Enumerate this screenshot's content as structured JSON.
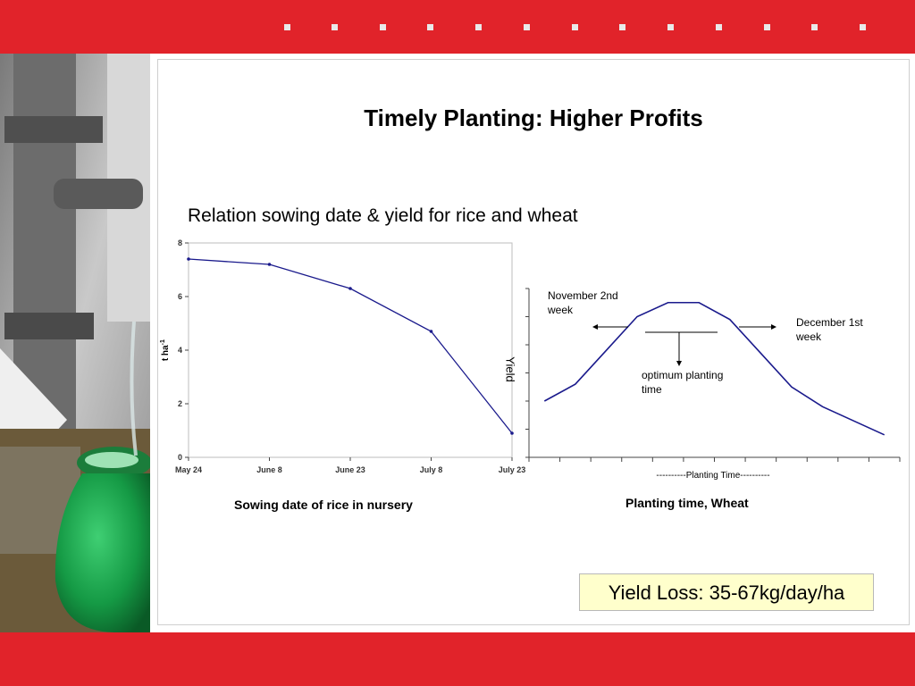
{
  "slide": {
    "title": "Timely Planting: Higher Profits",
    "subtitle": "Relation sowing date & yield for rice and wheat",
    "yield_loss": "Yield Loss: 35-67kg/day/ha"
  },
  "colors": {
    "accent_red": "#e1232a",
    "series_line": "#1a1a8c",
    "yield_box_bg": "#ffffcc"
  },
  "chart_data": [
    {
      "type": "line",
      "title": "Sowing date of rice in nursery",
      "xlabel": "",
      "ylabel": "t ha-1",
      "ylabel_base": "t ha",
      "ylabel_sup": "-1",
      "categories": [
        "May 24",
        "June 8",
        "June 23",
        "July 8",
        "July 23"
      ],
      "values": [
        7.4,
        7.2,
        6.3,
        4.7,
        0.9
      ],
      "ylim": [
        0,
        8
      ],
      "yticks": [
        "0",
        "2",
        "4",
        "6",
        "8"
      ],
      "grid": false
    },
    {
      "type": "line",
      "title": "Planting time, Wheat",
      "xlabel": "----------Planting Time----------",
      "ylabel": "Yield",
      "x": [
        1,
        2,
        3,
        4,
        5,
        6,
        7,
        8,
        9,
        10,
        11,
        12
      ],
      "values": [
        2.0,
        2.6,
        3.8,
        5.0,
        5.5,
        5.5,
        4.9,
        3.7,
        2.5,
        1.8,
        1.3,
        0.8
      ],
      "ylim": [
        0,
        6
      ],
      "annotations": {
        "left": "November 2nd week",
        "right": "December 1st week",
        "center": "optimum planting time"
      },
      "grid": false
    }
  ]
}
